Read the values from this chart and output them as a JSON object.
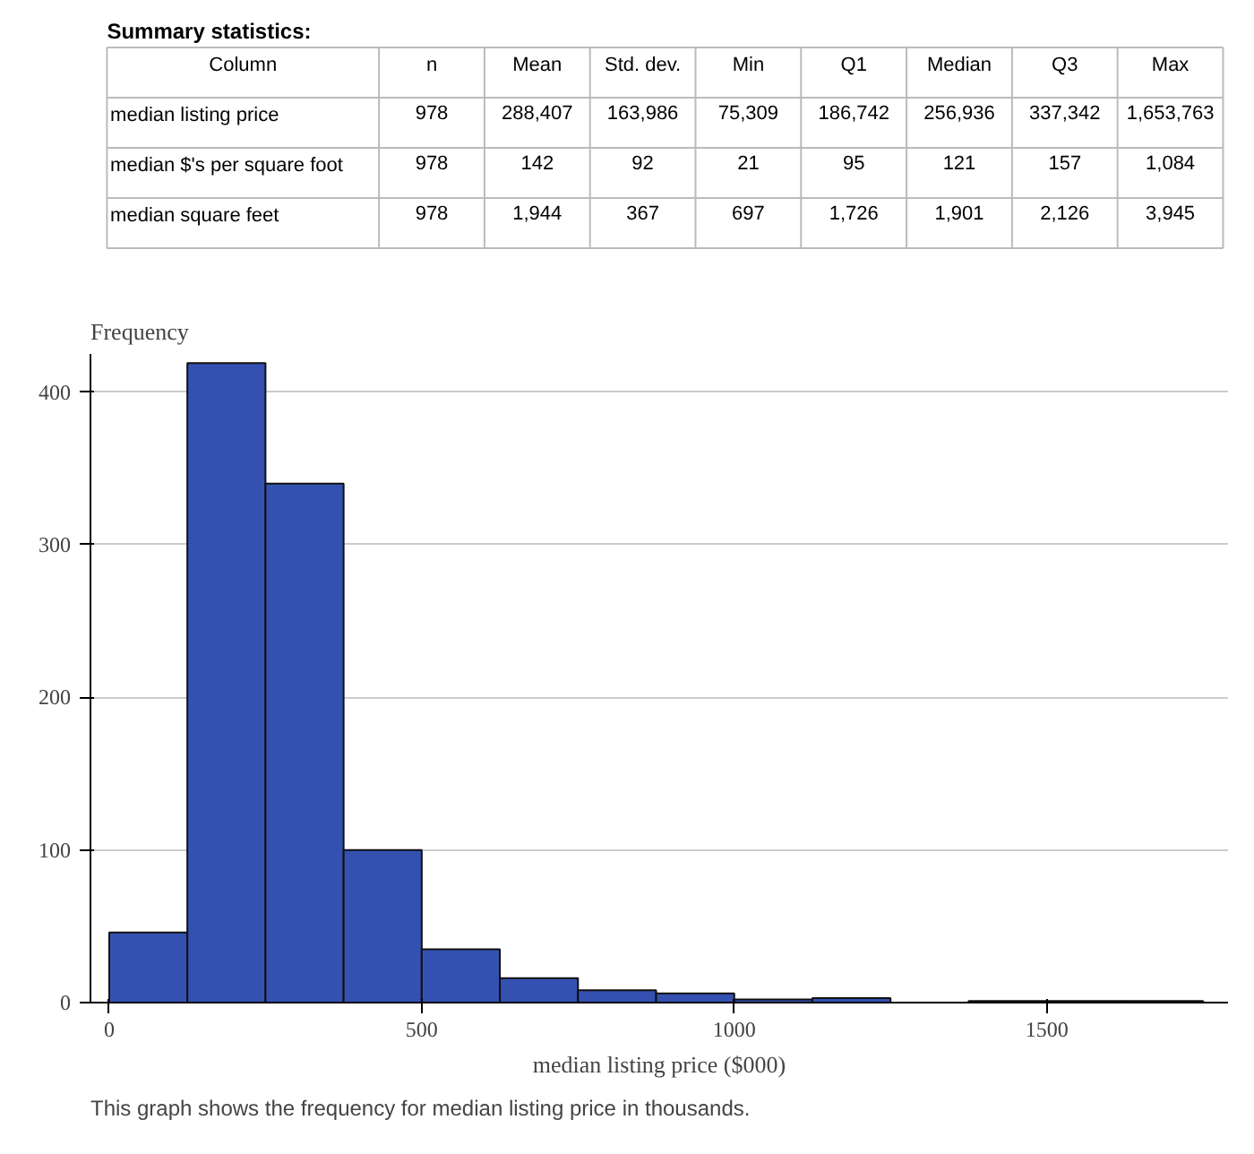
{
  "chart_data": [
    {
      "type": "other",
      "title": "Summary statistics:",
      "annotations": [
        "Column",
        "n",
        "Mean",
        "Std. dev.",
        "Min",
        "Q1",
        "Median",
        "Q3",
        "Max",
        "median listing price",
        "978",
        "288,407",
        "163,986",
        "75,309",
        "186,742",
        "256,936",
        "337,342",
        "1,653,763",
        "median $'s per square foot",
        "978",
        "142",
        "92",
        "21",
        "95",
        "121",
        "157",
        "1,084",
        "median square feet",
        "978",
        "1,944",
        "367",
        "697",
        "1,726",
        "1,901",
        "2,126",
        "3,945"
      ]
    },
    {
      "type": "histogram",
      "ylabel": "Frequency",
      "xlabel": "median listing price ($000)",
      "bins": [
        0,
        125,
        250,
        375,
        500,
        625,
        750,
        875,
        1000,
        1125,
        1250,
        1375,
        1500,
        1625,
        1750
      ],
      "values": [
        46,
        419,
        340,
        100,
        35,
        16,
        8,
        6,
        2,
        3,
        0,
        1,
        1,
        1
      ],
      "color": "#3451b2",
      "xlim": [
        -30,
        1790
      ],
      "xticks": [
        0,
        500,
        1000,
        1500
      ],
      "ylim": [
        0,
        425
      ],
      "yticks": [
        0,
        100,
        200,
        300,
        400
      ],
      "grid": "y",
      "annotations": [
        "This graph shows the frequency for median listing price in thousands."
      ]
    }
  ]
}
